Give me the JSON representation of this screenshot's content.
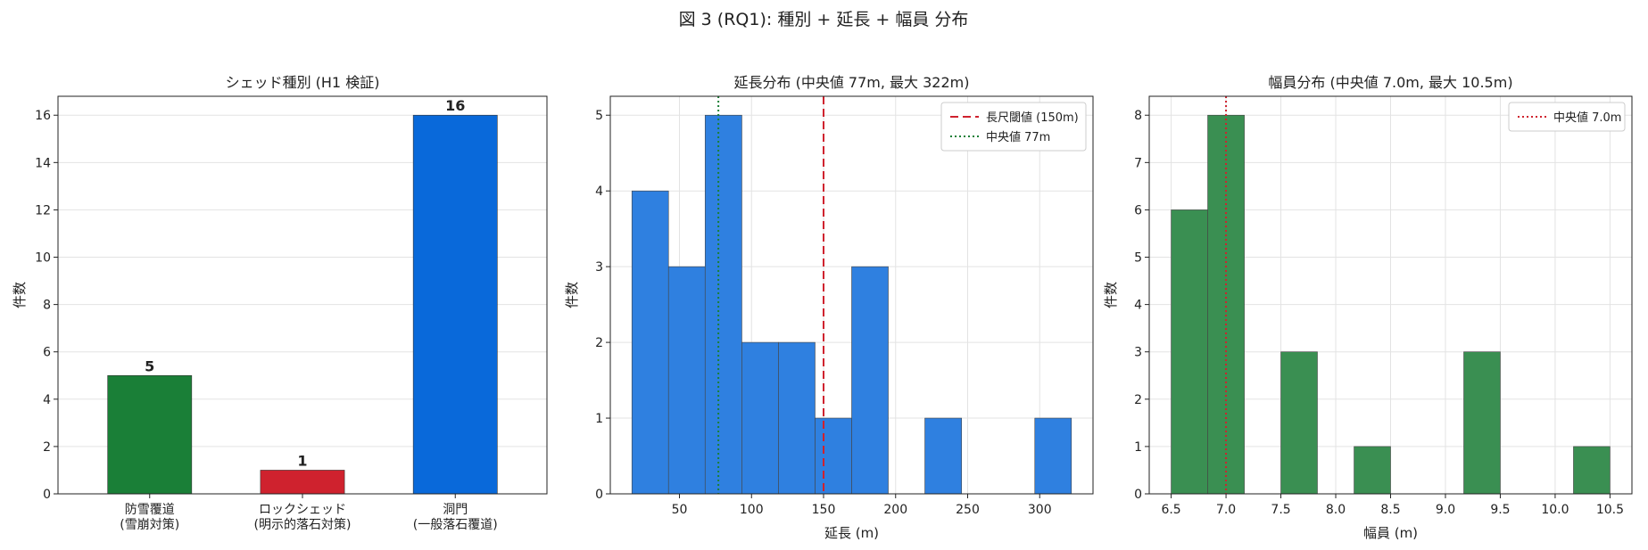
{
  "figure_title": "図 3 (RQ1): 種別 + 延長 + 幅員 分布",
  "colors": {
    "green": "#1a7f37",
    "red": "#cf222e",
    "blue": "#0969da",
    "hist_blue": "#2f80e0",
    "hist_green": "#3a8f52",
    "median_green_line": "#1a7f37",
    "threshold_red_line": "#cf222e",
    "median_red_line": "#cf222e"
  },
  "chart_data": [
    {
      "type": "bar",
      "title": "シェッド種別 (H1 検証)",
      "xlabel": "",
      "ylabel": "件数",
      "categories": [
        [
          "防雪覆道",
          "(雪崩対策)"
        ],
        [
          "ロックシェッド",
          "(明示的落石対策)"
        ],
        [
          "洞門",
          "(一般落石覆道)"
        ]
      ],
      "values": [
        5,
        1,
        16
      ],
      "bar_colors": [
        "#1a7f37",
        "#cf222e",
        "#0969da"
      ],
      "value_labels": [
        "5",
        "1",
        "16"
      ],
      "ylim": [
        0,
        16.8
      ],
      "yticks": [
        0,
        2,
        4,
        6,
        8,
        10,
        12,
        14,
        16
      ],
      "grid": true
    },
    {
      "type": "bar",
      "subtype": "histogram",
      "title": "延長分布 (中央値 77m, 最大 322m)",
      "xlabel": "延長 (m)",
      "ylabel": "件数",
      "bin_edges": [
        17,
        42.4,
        67.8,
        93.3,
        118.7,
        144.1,
        169.5,
        194.9,
        220.3,
        245.8,
        271.2,
        296.6,
        322
      ],
      "counts": [
        4,
        3,
        5,
        2,
        2,
        1,
        3,
        0,
        1,
        0,
        0,
        1
      ],
      "xlim": [
        2,
        337
      ],
      "ylim": [
        0,
        5.25
      ],
      "xticks": [
        50,
        100,
        150,
        200,
        250,
        300
      ],
      "yticks": [
        0,
        1,
        2,
        3,
        4,
        5
      ],
      "reference_lines": [
        {
          "x": 150,
          "label": "長尺閾値 (150m)",
          "style": "dashed",
          "color": "#cf222e"
        },
        {
          "x": 77,
          "label": "中央値 77m",
          "style": "dotted",
          "color": "#1a7f37"
        }
      ],
      "legend": "top-right",
      "grid": true
    },
    {
      "type": "bar",
      "subtype": "histogram",
      "title": "幅員分布 (中央値 7.0m, 最大 10.5m)",
      "xlabel": "幅員 (m)",
      "ylabel": "件数",
      "bin_edges": [
        6.5,
        6.833,
        7.167,
        7.5,
        7.833,
        8.167,
        8.5,
        8.833,
        9.167,
        9.5,
        9.833,
        10.167,
        10.5
      ],
      "counts": [
        6,
        8,
        0,
        3,
        0,
        1,
        0,
        0,
        3,
        0,
        0,
        1
      ],
      "xlim": [
        6.3,
        10.7
      ],
      "ylim": [
        0,
        8.4
      ],
      "xticks": [
        "6.5",
        "7.0",
        "7.5",
        "8.0",
        "8.5",
        "9.0",
        "9.5",
        "10.0",
        "10.5"
      ],
      "yticks": [
        0,
        1,
        2,
        3,
        4,
        5,
        6,
        7,
        8
      ],
      "reference_lines": [
        {
          "x": 7.0,
          "label": "中央値 7.0m",
          "style": "dotted",
          "color": "#cf222e"
        }
      ],
      "legend": "top-right",
      "grid": true
    }
  ]
}
